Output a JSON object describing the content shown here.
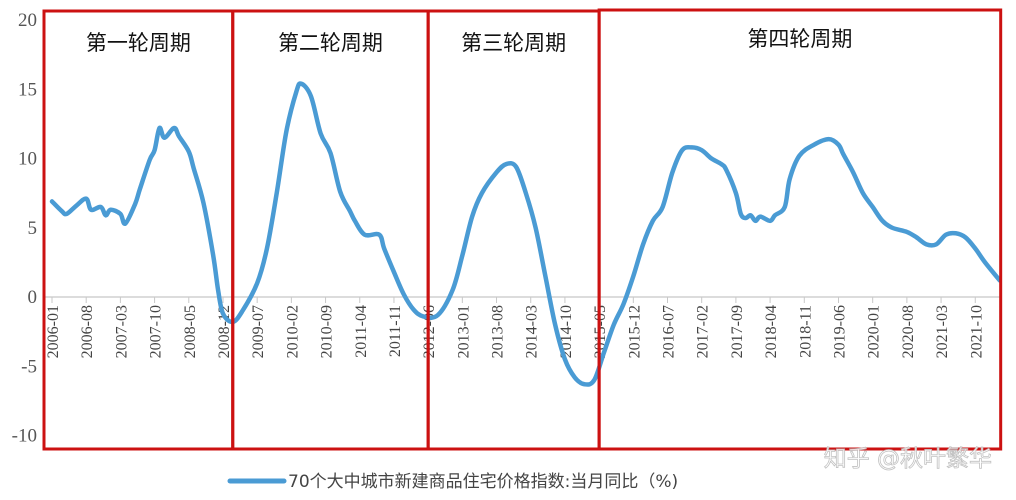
{
  "chart_data": {
    "type": "line",
    "title": "",
    "xlabel": "",
    "ylabel": "",
    "ylim": [
      -10,
      20
    ],
    "yticks": [
      20,
      15,
      10,
      5,
      0,
      -5,
      -10
    ],
    "xticks": [
      "2006-01",
      "2006-08",
      "2007-03",
      "2007-10",
      "2008-05",
      "2008-12",
      "2009-07",
      "2010-02",
      "2010-09",
      "2011-04",
      "2011-11",
      "2012-06",
      "2013-01",
      "2013-08",
      "2014-03",
      "2014-10",
      "2015-05",
      "2015-12",
      "2016-07",
      "2017-02",
      "2017-09",
      "2018-04",
      "2018-11",
      "2019-06",
      "2020-01",
      "2020-08",
      "2021-03",
      "2021-10"
    ],
    "grid": false,
    "legend_position": "bottom",
    "series": [
      {
        "name": "70个大中城市新建商品住宅价格指数:当月同比（%)",
        "color": "#4a9bd4",
        "x": [
          "2006-01",
          "2006-03",
          "2006-04",
          "2006-06",
          "2006-08",
          "2006-09",
          "2006-11",
          "2006-12",
          "2007-01",
          "2007-03",
          "2007-04",
          "2007-06",
          "2007-07",
          "2007-09",
          "2007-10",
          "2007-11",
          "2007-12",
          "2008-02",
          "2008-03",
          "2008-05",
          "2008-06",
          "2008-08",
          "2008-10",
          "2008-11",
          "2008-12",
          "2009-02",
          "2009-04",
          "2009-07",
          "2009-09",
          "2009-11",
          "2010-01",
          "2010-03",
          "2010-04",
          "2010-06",
          "2010-08",
          "2010-10",
          "2010-12",
          "2011-02",
          "2011-03",
          "2011-05",
          "2011-08",
          "2011-09",
          "2011-11",
          "2012-01",
          "2012-03",
          "2012-05",
          "2012-08",
          "2012-11",
          "2013-01",
          "2013-03",
          "2013-05",
          "2013-08",
          "2013-10",
          "2013-12",
          "2014-02",
          "2014-04",
          "2014-06",
          "2014-08",
          "2014-10",
          "2014-12",
          "2015-02",
          "2015-04",
          "2015-06",
          "2015-08",
          "2015-10",
          "2015-12",
          "2016-02",
          "2016-04",
          "2016-06",
          "2016-08",
          "2016-10",
          "2016-12",
          "2017-02",
          "2017-04",
          "2017-06",
          "2017-07",
          "2017-09",
          "2017-10",
          "2017-11",
          "2017-12",
          "2018-01",
          "2018-02",
          "2018-04",
          "2018-05",
          "2018-07",
          "2018-08",
          "2018-10",
          "2019-01",
          "2019-04",
          "2019-06",
          "2019-07",
          "2019-09",
          "2019-11",
          "2020-01",
          "2020-03",
          "2020-05",
          "2020-08",
          "2020-10",
          "2020-12",
          "2021-02",
          "2021-04",
          "2021-06",
          "2021-08",
          "2021-10",
          "2021-12",
          "2022-03"
        ],
        "values": [
          6.9,
          6.2,
          6.0,
          6.6,
          7.1,
          6.3,
          6.5,
          5.9,
          6.3,
          6.0,
          5.3,
          6.7,
          7.8,
          9.9,
          10.6,
          12.2,
          11.5,
          12.2,
          11.6,
          10.5,
          9.3,
          6.8,
          3.0,
          0.5,
          -1.2,
          -1.8,
          -1.0,
          1.0,
          3.5,
          7.5,
          12.0,
          14.8,
          15.4,
          14.5,
          11.8,
          10.4,
          7.6,
          6.2,
          5.5,
          4.5,
          4.5,
          3.5,
          1.8,
          0.2,
          -0.9,
          -1.4,
          -1.3,
          0.5,
          3.0,
          5.8,
          7.5,
          9.0,
          9.6,
          9.4,
          7.5,
          5.0,
          1.5,
          -2.0,
          -4.5,
          -5.8,
          -6.3,
          -6.0,
          -4.0,
          -2.0,
          -0.5,
          1.5,
          3.8,
          5.5,
          6.5,
          9.0,
          10.6,
          10.8,
          10.6,
          10.0,
          9.6,
          9.2,
          7.5,
          6.0,
          5.7,
          5.9,
          5.5,
          5.8,
          5.5,
          5.9,
          6.5,
          8.5,
          10.2,
          11.0,
          11.4,
          11.0,
          10.3,
          9.0,
          7.5,
          6.5,
          5.5,
          5.0,
          4.7,
          4.3,
          3.8,
          3.8,
          4.5,
          4.6,
          4.3,
          3.5,
          2.5,
          1.2
        ]
      }
    ],
    "annotations": {
      "box_color": "#cc1111",
      "cycles": [
        {
          "label": "第一轮周期",
          "start": "2006-01",
          "end": "2009-02"
        },
        {
          "label": "第二轮周期",
          "start": "2009-02",
          "end": "2012-06"
        },
        {
          "label": "第三轮周期",
          "start": "2012-06",
          "end": "2015-05"
        },
        {
          "label": "第四轮周期",
          "start": "2015-05",
          "end": "2022-03"
        }
      ]
    }
  },
  "watermark": "知乎 @秋叶繁华"
}
